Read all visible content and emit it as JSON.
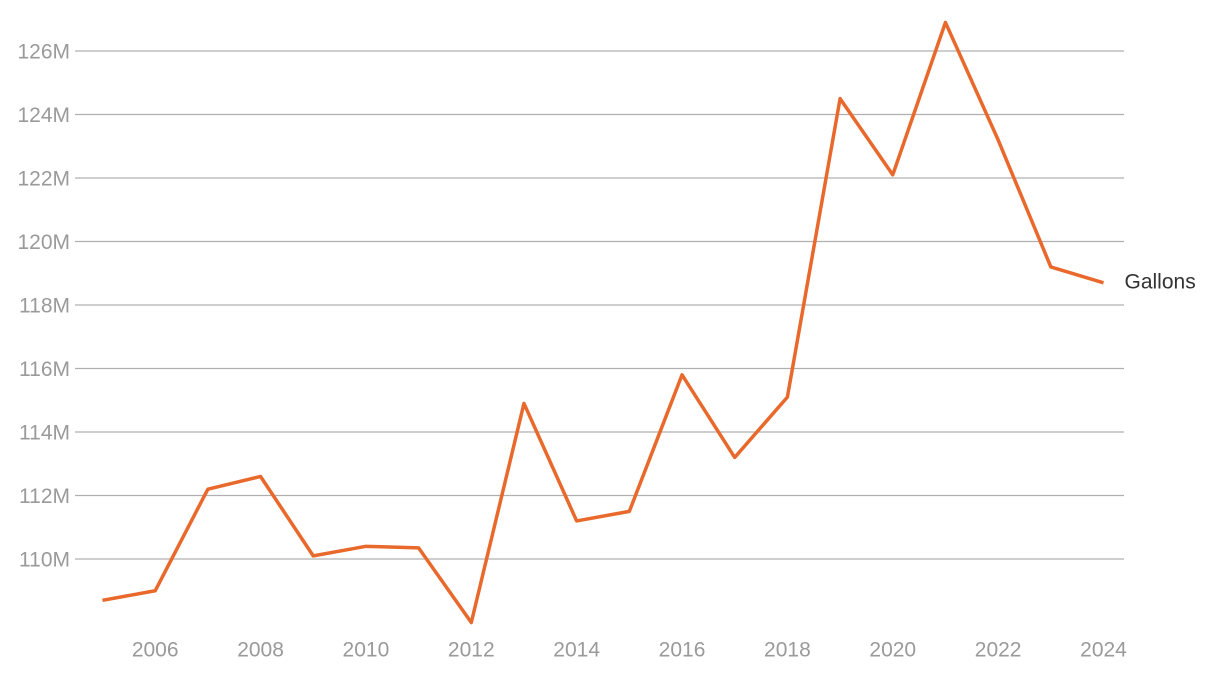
{
  "chart_data": {
    "type": "line",
    "x": [
      2005,
      2006,
      2007,
      2008,
      2009,
      2010,
      2011,
      2012,
      2013,
      2014,
      2015,
      2016,
      2017,
      2018,
      2019,
      2020,
      2021,
      2022,
      2023,
      2024
    ],
    "series": [
      {
        "name": "Gallons",
        "color": "#e8692b",
        "values": [
          108700000,
          109000000,
          112200000,
          112600000,
          110100000,
          110400000,
          110350000,
          108000000,
          114900000,
          111200000,
          111500000,
          115800000,
          113200000,
          115100000,
          124500000,
          122100000,
          126900000,
          123200000,
          119200000,
          118700000
        ]
      }
    ],
    "xlim": [
      2005,
      2024
    ],
    "xticks": [
      2006,
      2008,
      2010,
      2012,
      2014,
      2016,
      2018,
      2020,
      2022,
      2024
    ],
    "ylim": [
      107900000,
      127000000
    ],
    "yticks": [
      {
        "value": 110000000,
        "label": "110M"
      },
      {
        "value": 112000000,
        "label": "112M"
      },
      {
        "value": 114000000,
        "label": "114M"
      },
      {
        "value": 116000000,
        "label": "116M"
      },
      {
        "value": 118000000,
        "label": "118M"
      },
      {
        "value": 120000000,
        "label": "120M"
      },
      {
        "value": 122000000,
        "label": "122M"
      },
      {
        "value": 124000000,
        "label": "124M"
      },
      {
        "value": 126000000,
        "label": "126M"
      }
    ],
    "grid": true
  }
}
